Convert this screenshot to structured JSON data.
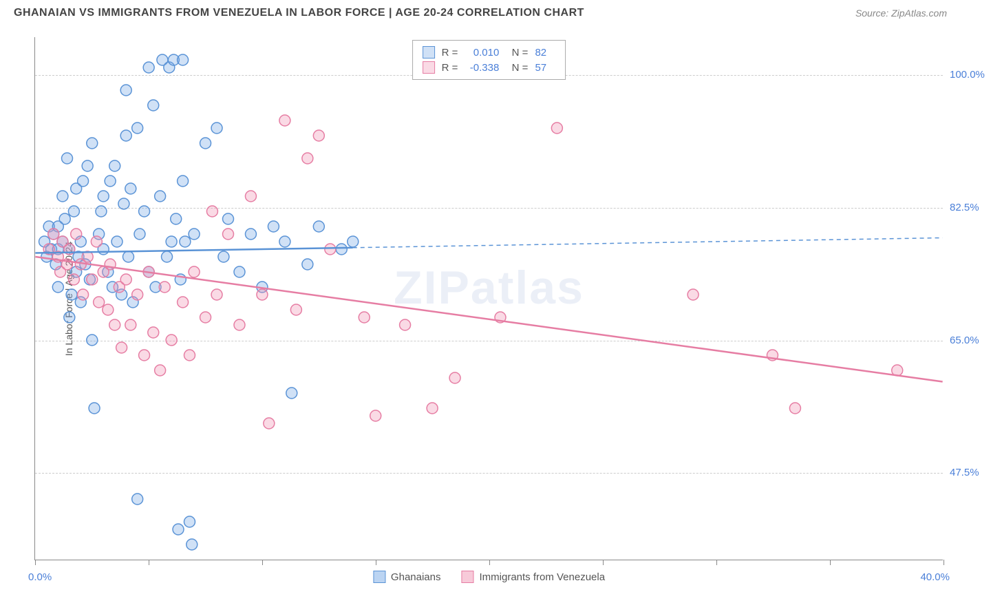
{
  "header": {
    "title": "GHANAIAN VS IMMIGRANTS FROM VENEZUELA IN LABOR FORCE | AGE 20-24 CORRELATION CHART",
    "source": "Source: ZipAtlas.com"
  },
  "watermark": "ZIPatlas",
  "chart": {
    "type": "scatter",
    "ylabel": "In Labor Force | Age 20-24",
    "xlim": [
      0,
      40
    ],
    "ylim": [
      36,
      105
    ],
    "yticks": [
      47.5,
      65.0,
      82.5,
      100.0
    ],
    "ytick_labels": [
      "47.5%",
      "65.0%",
      "82.5%",
      "100.0%"
    ],
    "xticks": [
      0,
      5,
      10,
      15,
      20,
      25,
      30,
      35,
      40
    ],
    "xaxis_label_left": "0.0%",
    "xaxis_label_right": "40.0%",
    "background_color": "#ffffff",
    "grid_color": "#cccccc",
    "axis_color": "#888888",
    "marker_radius": 8,
    "marker_stroke_width": 1.5,
    "series": [
      {
        "name": "Ghanaians",
        "fill_color": "rgba(120,170,230,0.35)",
        "stroke_color": "#5a93d6",
        "r_value": "0.010",
        "n_value": "82",
        "regression": {
          "x1": 0,
          "y1": 76.5,
          "x2": 40,
          "y2": 78.5,
          "solid_until_x": 14
        },
        "points": [
          [
            0.4,
            78
          ],
          [
            0.5,
            76
          ],
          [
            0.6,
            80
          ],
          [
            0.7,
            77
          ],
          [
            0.8,
            79
          ],
          [
            0.9,
            75
          ],
          [
            1.0,
            77
          ],
          [
            1.0,
            80
          ],
          [
            1.0,
            72
          ],
          [
            1.2,
            84
          ],
          [
            1.2,
            78
          ],
          [
            1.3,
            81
          ],
          [
            1.4,
            89
          ],
          [
            1.5,
            77
          ],
          [
            1.5,
            68
          ],
          [
            1.6,
            71
          ],
          [
            1.7,
            82
          ],
          [
            1.8,
            74
          ],
          [
            1.8,
            85
          ],
          [
            1.9,
            76
          ],
          [
            2.0,
            78
          ],
          [
            2.0,
            70
          ],
          [
            2.1,
            86
          ],
          [
            2.2,
            75
          ],
          [
            2.3,
            88
          ],
          [
            2.4,
            73
          ],
          [
            2.5,
            91
          ],
          [
            2.5,
            65
          ],
          [
            2.6,
            56
          ],
          [
            2.8,
            79
          ],
          [
            2.9,
            82
          ],
          [
            3.0,
            77
          ],
          [
            3.0,
            84
          ],
          [
            3.2,
            74
          ],
          [
            3.3,
            86
          ],
          [
            3.4,
            72
          ],
          [
            3.5,
            88
          ],
          [
            3.6,
            78
          ],
          [
            3.8,
            71
          ],
          [
            3.9,
            83
          ],
          [
            4.0,
            92
          ],
          [
            4.0,
            98
          ],
          [
            4.1,
            76
          ],
          [
            4.2,
            85
          ],
          [
            4.3,
            70
          ],
          [
            4.5,
            93
          ],
          [
            4.5,
            44
          ],
          [
            4.6,
            79
          ],
          [
            4.8,
            82
          ],
          [
            5.0,
            101
          ],
          [
            5.0,
            74
          ],
          [
            5.2,
            96
          ],
          [
            5.3,
            72
          ],
          [
            5.5,
            84
          ],
          [
            5.6,
            102
          ],
          [
            5.8,
            76
          ],
          [
            5.9,
            101
          ],
          [
            6.0,
            78
          ],
          [
            6.1,
            102
          ],
          [
            6.2,
            81
          ],
          [
            6.3,
            40
          ],
          [
            6.4,
            73
          ],
          [
            6.5,
            86
          ],
          [
            6.5,
            102
          ],
          [
            6.6,
            78
          ],
          [
            6.8,
            41
          ],
          [
            6.9,
            38
          ],
          [
            7.0,
            79
          ],
          [
            7.5,
            91
          ],
          [
            8.0,
            93
          ],
          [
            8.3,
            76
          ],
          [
            8.5,
            81
          ],
          [
            9.0,
            74
          ],
          [
            9.5,
            79
          ],
          [
            10.0,
            72
          ],
          [
            10.5,
            80
          ],
          [
            11.0,
            78
          ],
          [
            11.3,
            58
          ],
          [
            12.0,
            75
          ],
          [
            12.5,
            80
          ],
          [
            13.5,
            77
          ],
          [
            14.0,
            78
          ]
        ]
      },
      {
        "name": "Immigrants from Venezuela",
        "fill_color": "rgba(240,150,180,0.35)",
        "stroke_color": "#e67da3",
        "r_value": "-0.338",
        "n_value": "57",
        "regression": {
          "x1": 0,
          "y1": 76.0,
          "x2": 40,
          "y2": 59.5,
          "solid_until_x": 40
        },
        "points": [
          [
            0.6,
            77
          ],
          [
            0.8,
            79
          ],
          [
            1.0,
            76
          ],
          [
            1.1,
            74
          ],
          [
            1.2,
            78
          ],
          [
            1.4,
            75
          ],
          [
            1.5,
            77
          ],
          [
            1.7,
            73
          ],
          [
            1.8,
            79
          ],
          [
            2.0,
            75
          ],
          [
            2.1,
            71
          ],
          [
            2.3,
            76
          ],
          [
            2.5,
            73
          ],
          [
            2.7,
            78
          ],
          [
            2.8,
            70
          ],
          [
            3.0,
            74
          ],
          [
            3.2,
            69
          ],
          [
            3.3,
            75
          ],
          [
            3.5,
            67
          ],
          [
            3.7,
            72
          ],
          [
            3.8,
            64
          ],
          [
            4.0,
            73
          ],
          [
            4.2,
            67
          ],
          [
            4.5,
            71
          ],
          [
            4.8,
            63
          ],
          [
            5.0,
            74
          ],
          [
            5.2,
            66
          ],
          [
            5.5,
            61
          ],
          [
            5.7,
            72
          ],
          [
            6.0,
            65
          ],
          [
            6.5,
            70
          ],
          [
            6.8,
            63
          ],
          [
            7.0,
            74
          ],
          [
            7.5,
            68
          ],
          [
            7.8,
            82
          ],
          [
            8.0,
            71
          ],
          [
            8.5,
            79
          ],
          [
            9.0,
            67
          ],
          [
            9.5,
            84
          ],
          [
            10.0,
            71
          ],
          [
            10.3,
            54
          ],
          [
            11.0,
            94
          ],
          [
            11.5,
            69
          ],
          [
            12.0,
            89
          ],
          [
            12.5,
            92
          ],
          [
            13.0,
            77
          ],
          [
            14.5,
            68
          ],
          [
            15.0,
            55
          ],
          [
            16.3,
            67
          ],
          [
            17.5,
            56
          ],
          [
            18.5,
            60
          ],
          [
            20.5,
            68
          ],
          [
            23.0,
            93
          ],
          [
            29.0,
            71
          ],
          [
            32.5,
            63
          ],
          [
            33.5,
            56
          ],
          [
            38.0,
            61
          ]
        ]
      }
    ],
    "legend_bottom": [
      {
        "swatch_fill": "rgba(120,170,230,0.5)",
        "swatch_stroke": "#5a93d6",
        "label": "Ghanaians"
      },
      {
        "swatch_fill": "rgba(240,150,180,0.5)",
        "swatch_stroke": "#e67da3",
        "label": "Immigrants from Venezuela"
      }
    ]
  }
}
